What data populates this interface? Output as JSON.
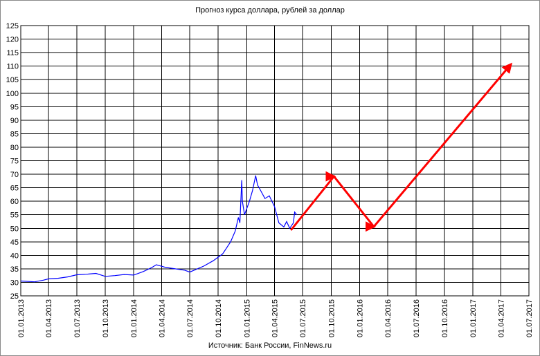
{
  "chart_data": {
    "type": "line",
    "title": "Прогноз курса доллара, рублей за доллар",
    "source": "Источник: Банк России, FinNews.ru",
    "xlim": [
      "2013-01-01",
      "2017-07-01"
    ],
    "xticks": [
      {
        "value": "2013-01-01",
        "label": "01.01.2013"
      },
      {
        "value": "2013-04-01",
        "label": "01.04.2013"
      },
      {
        "value": "2013-07-01",
        "label": "01.07.2013"
      },
      {
        "value": "2013-10-01",
        "label": "01.10.2013"
      },
      {
        "value": "2014-01-01",
        "label": "01.01.2014"
      },
      {
        "value": "2014-04-01",
        "label": "01.04.2014"
      },
      {
        "value": "2014-07-01",
        "label": "01.07.2014"
      },
      {
        "value": "2014-10-01",
        "label": "01.10.2014"
      },
      {
        "value": "2015-01-01",
        "label": "01.01.2015"
      },
      {
        "value": "2015-04-01",
        "label": "01.04.2015"
      },
      {
        "value": "2015-07-01",
        "label": "01.07.2015"
      },
      {
        "value": "2015-10-01",
        "label": "01.10.2015"
      },
      {
        "value": "2016-01-01",
        "label": "01.01.2016"
      },
      {
        "value": "2016-04-01",
        "label": "01.04.2016"
      },
      {
        "value": "2016-07-01",
        "label": "01.07.2016"
      },
      {
        "value": "2016-10-01",
        "label": "01.10.2016"
      },
      {
        "value": "2017-01-01",
        "label": "01.01.2017"
      },
      {
        "value": "2017-04-01",
        "label": "01.04.2017"
      },
      {
        "value": "2017-07-01",
        "label": "01.07.2017"
      }
    ],
    "ylim": [
      25,
      125
    ],
    "yticks": [
      25,
      30,
      35,
      40,
      45,
      50,
      55,
      60,
      65,
      70,
      75,
      80,
      85,
      90,
      95,
      100,
      105,
      110,
      115,
      120,
      125
    ],
    "grid": true,
    "series": [
      {
        "color": "#0000ff",
        "x": [
          "2013-01-01",
          "2013-02-15",
          "2013-03-15",
          "2013-04-01",
          "2013-05-01",
          "2013-06-01",
          "2013-07-01",
          "2013-08-01",
          "2013-09-01",
          "2013-10-01",
          "2013-11-01",
          "2013-12-01",
          "2014-01-01",
          "2014-02-01",
          "2014-03-01",
          "2014-03-15",
          "2014-04-15",
          "2014-05-15",
          "2014-06-15",
          "2014-07-01",
          "2014-07-15",
          "2014-08-15",
          "2014-09-15",
          "2014-10-15",
          "2014-11-10",
          "2014-11-25",
          "2014-12-05",
          "2014-12-10",
          "2014-12-16",
          "2014-12-18",
          "2014-12-25",
          "2015-01-10",
          "2015-01-20",
          "2015-01-30",
          "2015-02-05",
          "2015-02-15",
          "2015-03-01",
          "2015-03-15",
          "2015-04-01",
          "2015-04-15",
          "2015-05-01",
          "2015-05-10",
          "2015-05-20",
          "2015-06-01",
          "2015-06-05",
          "2015-06-12"
        ],
        "values": [
          30.5,
          30.2,
          30.8,
          31.3,
          31.5,
          32.0,
          32.8,
          33.0,
          33.3,
          32.2,
          32.5,
          32.9,
          32.7,
          34.0,
          35.5,
          36.5,
          35.5,
          35.0,
          34.5,
          33.8,
          34.5,
          36.0,
          38.0,
          40.5,
          45.0,
          49.0,
          54.0,
          52.0,
          67.8,
          60.0,
          55.0,
          60.0,
          64.0,
          69.5,
          66.0,
          64.0,
          61.0,
          62.0,
          58.0,
          52.0,
          50.5,
          52.5,
          50.0,
          52.0,
          56.0,
          55.0
        ]
      },
      {
        "color": "#ff0000",
        "x": [
          "2015-05-24",
          "2015-10-10",
          "2016-02-16",
          "2017-05-04"
        ],
        "values": [
          49.3,
          69.2,
          50.6,
          110.7
        ]
      }
    ]
  }
}
